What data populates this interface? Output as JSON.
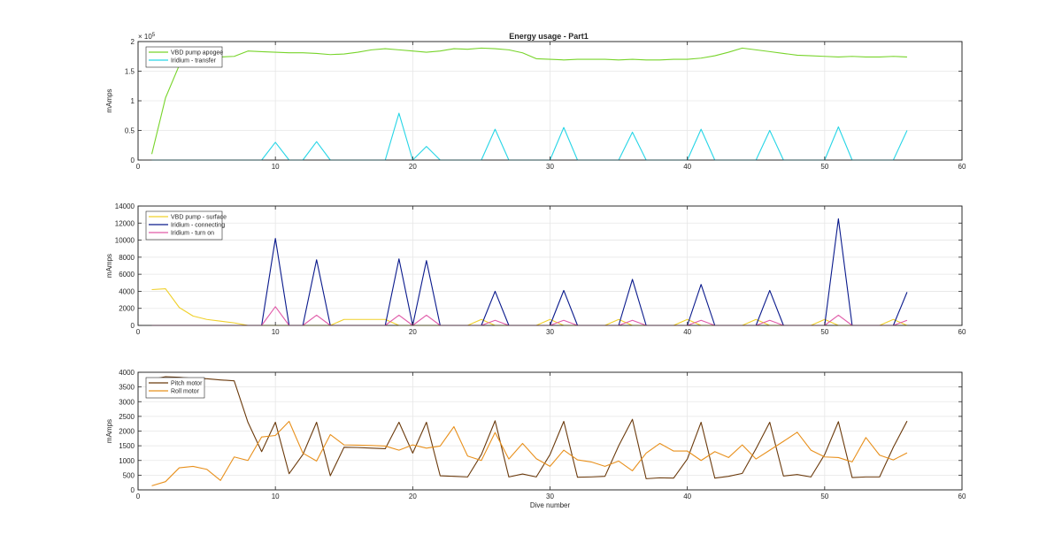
{
  "figure": {
    "title": "Energy usage - Part1"
  },
  "chart_data": [
    {
      "type": "line",
      "title": "Energy usage - Part1",
      "xlabel": "",
      "ylabel": "mAmps",
      "exponent_label": "× 10",
      "exponent_power": "5",
      "xlim": [
        0,
        60
      ],
      "ylim": [
        0,
        2
      ],
      "xticks": [
        0,
        10,
        20,
        30,
        40,
        50,
        60
      ],
      "yticks": [
        0,
        0.5,
        1,
        1.5,
        2
      ],
      "xtick_labels": [
        "0",
        "10",
        "20",
        "30",
        "40",
        "50",
        "60"
      ],
      "ytick_labels": [
        "0",
        "0.5",
        "1",
        "1.5",
        "2"
      ],
      "grid": true,
      "legend_position": "top-left",
      "series": [
        {
          "name": "VBD pump apogee",
          "color": "#77d42a",
          "x": [
            1,
            2,
            3,
            4,
            5,
            6,
            7,
            8,
            9,
            10,
            11,
            12,
            13,
            14,
            15,
            16,
            17,
            18,
            19,
            20,
            21,
            22,
            23,
            24,
            25,
            26,
            27,
            28,
            29,
            30,
            31,
            32,
            33,
            34,
            35,
            36,
            37,
            38,
            39,
            40,
            41,
            42,
            43,
            44,
            45,
            46,
            47,
            48,
            49,
            50,
            51,
            52,
            53,
            54,
            55,
            56
          ],
          "y": [
            0.1,
            1.05,
            1.6,
            1.72,
            1.73,
            1.74,
            1.75,
            1.84,
            1.83,
            1.82,
            1.81,
            1.81,
            1.8,
            1.78,
            1.79,
            1.82,
            1.86,
            1.88,
            1.86,
            1.84,
            1.82,
            1.84,
            1.88,
            1.87,
            1.89,
            1.88,
            1.86,
            1.81,
            1.71,
            1.7,
            1.69,
            1.7,
            1.7,
            1.7,
            1.69,
            1.7,
            1.69,
            1.69,
            1.7,
            1.7,
            1.72,
            1.76,
            1.82,
            1.89,
            1.86,
            1.83,
            1.8,
            1.77,
            1.76,
            1.75,
            1.74,
            1.75,
            1.74,
            1.74,
            1.75,
            1.74
          ]
        },
        {
          "name": "Iridium - transfer",
          "color": "#27d5e6",
          "x": [
            1,
            2,
            3,
            4,
            5,
            6,
            7,
            8,
            9,
            10,
            11,
            12,
            13,
            14,
            15,
            16,
            17,
            18,
            19,
            20,
            21,
            22,
            23,
            24,
            25,
            26,
            27,
            28,
            29,
            30,
            31,
            32,
            33,
            34,
            35,
            36,
            37,
            38,
            39,
            40,
            41,
            42,
            43,
            44,
            45,
            46,
            47,
            48,
            49,
            50,
            51,
            52,
            53,
            54,
            55,
            56
          ],
          "y": [
            0,
            0,
            0,
            0,
            0,
            0,
            0,
            0,
            0,
            0.3,
            0,
            0,
            0.31,
            0,
            0,
            0,
            0,
            0,
            0.79,
            0,
            0.23,
            0,
            0,
            0,
            0,
            0.52,
            0,
            0,
            0,
            0,
            0.55,
            0,
            0,
            0,
            0,
            0.47,
            0,
            0,
            0,
            0,
            0.52,
            0,
            0,
            0,
            0,
            0.5,
            0,
            0,
            0,
            0,
            0.56,
            0,
            0,
            0,
            0,
            0.5
          ]
        }
      ]
    },
    {
      "type": "line",
      "title": "",
      "xlabel": "",
      "ylabel": "mAmps",
      "xlim": [
        0,
        60
      ],
      "ylim": [
        0,
        14000
      ],
      "xticks": [
        0,
        10,
        20,
        30,
        40,
        50,
        60
      ],
      "yticks": [
        0,
        2000,
        4000,
        6000,
        8000,
        10000,
        12000,
        14000
      ],
      "xtick_labels": [
        "0",
        "10",
        "20",
        "30",
        "40",
        "50",
        "60"
      ],
      "ytick_labels": [
        "0",
        "2000",
        "4000",
        "6000",
        "8000",
        "10000",
        "12000",
        "14000"
      ],
      "grid": true,
      "legend_position": "top-left",
      "series": [
        {
          "name": "VBD pump - surface",
          "color": "#f0d02a",
          "x": [
            1,
            2,
            3,
            4,
            5,
            6,
            7,
            8,
            9,
            10,
            11,
            12,
            13,
            14,
            15,
            16,
            17,
            18,
            19,
            20,
            21,
            22,
            23,
            24,
            25,
            26,
            27,
            28,
            29,
            30,
            31,
            32,
            33,
            34,
            35,
            36,
            37,
            38,
            39,
            40,
            41,
            42,
            43,
            44,
            45,
            46,
            47,
            48,
            49,
            50,
            51,
            52,
            53,
            54,
            55,
            56
          ],
          "y": [
            4200,
            4300,
            2100,
            1100,
            700,
            500,
            300,
            0,
            0,
            0,
            0,
            0,
            0,
            0,
            700,
            700,
            700,
            700,
            0,
            0,
            0,
            0,
            0,
            0,
            700,
            0,
            0,
            0,
            0,
            700,
            0,
            0,
            0,
            0,
            700,
            0,
            0,
            0,
            0,
            700,
            0,
            0,
            0,
            0,
            700,
            0,
            0,
            0,
            0,
            700,
            0,
            0,
            0,
            0,
            700,
            0
          ]
        },
        {
          "name": "Iridium - connecting",
          "color": "#0a1a8c",
          "x": [
            1,
            2,
            3,
            4,
            5,
            6,
            7,
            8,
            9,
            10,
            11,
            12,
            13,
            14,
            15,
            16,
            17,
            18,
            19,
            20,
            21,
            22,
            23,
            24,
            25,
            26,
            27,
            28,
            29,
            30,
            31,
            32,
            33,
            34,
            35,
            36,
            37,
            38,
            39,
            40,
            41,
            42,
            43,
            44,
            45,
            46,
            47,
            48,
            49,
            50,
            51,
            52,
            53,
            54,
            55,
            56
          ],
          "y": [
            0,
            0,
            0,
            0,
            0,
            0,
            0,
            0,
            0,
            10200,
            0,
            0,
            7700,
            0,
            0,
            0,
            0,
            0,
            7800,
            0,
            7600,
            0,
            0,
            0,
            0,
            4000,
            0,
            0,
            0,
            0,
            4100,
            0,
            0,
            0,
            0,
            5400,
            0,
            0,
            0,
            0,
            4800,
            0,
            0,
            0,
            0,
            4100,
            0,
            0,
            0,
            0,
            12500,
            0,
            0,
            0,
            0,
            3900
          ]
        },
        {
          "name": "Iridium - turn on",
          "color": "#e05aa8",
          "x": [
            1,
            2,
            3,
            4,
            5,
            6,
            7,
            8,
            9,
            10,
            11,
            12,
            13,
            14,
            15,
            16,
            17,
            18,
            19,
            20,
            21,
            22,
            23,
            24,
            25,
            26,
            27,
            28,
            29,
            30,
            31,
            32,
            33,
            34,
            35,
            36,
            37,
            38,
            39,
            40,
            41,
            42,
            43,
            44,
            45,
            46,
            47,
            48,
            49,
            50,
            51,
            52,
            53,
            54,
            55,
            56
          ],
          "y": [
            0,
            0,
            0,
            0,
            0,
            0,
            0,
            0,
            0,
            2200,
            0,
            0,
            1200,
            0,
            0,
            0,
            0,
            0,
            1200,
            0,
            1200,
            0,
            0,
            0,
            0,
            600,
            0,
            0,
            0,
            0,
            600,
            0,
            0,
            0,
            0,
            600,
            0,
            0,
            0,
            0,
            600,
            0,
            0,
            0,
            0,
            600,
            0,
            0,
            0,
            0,
            1200,
            0,
            0,
            0,
            0,
            600
          ]
        }
      ]
    },
    {
      "type": "line",
      "title": "",
      "xlabel": "Dive number",
      "ylabel": "mAmps",
      "xlim": [
        0,
        60
      ],
      "ylim": [
        0,
        4000
      ],
      "xticks": [
        0,
        10,
        20,
        30,
        40,
        50,
        60
      ],
      "yticks": [
        0,
        500,
        1000,
        1500,
        2000,
        2500,
        3000,
        3500,
        4000
      ],
      "xtick_labels": [
        "0",
        "10",
        "20",
        "30",
        "40",
        "50",
        "60"
      ],
      "ytick_labels": [
        "0",
        "500",
        "1000",
        "1500",
        "2000",
        "2500",
        "3000",
        "3500",
        "4000"
      ],
      "grid": true,
      "legend_position": "top-left",
      "series": [
        {
          "name": "Pitch motor",
          "color": "#6b3a0c",
          "x": [
            1,
            2,
            3,
            4,
            5,
            6,
            7,
            8,
            9,
            10,
            11,
            12,
            13,
            14,
            15,
            16,
            17,
            18,
            19,
            20,
            21,
            22,
            23,
            24,
            25,
            26,
            27,
            28,
            29,
            30,
            31,
            32,
            33,
            34,
            35,
            36,
            37,
            38,
            39,
            40,
            41,
            42,
            43,
            44,
            45,
            46,
            47,
            48,
            49,
            50,
            51,
            52,
            53,
            54,
            55,
            56
          ],
          "y": [
            3760,
            3850,
            3830,
            3790,
            3780,
            3740,
            3710,
            2300,
            1300,
            2300,
            550,
            1200,
            2300,
            480,
            1450,
            1440,
            1420,
            1400,
            2300,
            1250,
            2300,
            480,
            460,
            440,
            1200,
            2350,
            440,
            540,
            440,
            1200,
            2330,
            430,
            440,
            460,
            1500,
            2400,
            380,
            410,
            400,
            1050,
            2300,
            400,
            460,
            560,
            1400,
            2300,
            470,
            520,
            440,
            1200,
            2320,
            420,
            440,
            440,
            1450,
            2340
          ]
        },
        {
          "name": "Roll motor",
          "color": "#e8901c",
          "x": [
            1,
            2,
            3,
            4,
            5,
            6,
            7,
            8,
            9,
            10,
            11,
            12,
            13,
            14,
            15,
            16,
            17,
            18,
            19,
            20,
            21,
            22,
            23,
            24,
            25,
            26,
            27,
            28,
            29,
            30,
            31,
            32,
            33,
            34,
            35,
            36,
            37,
            38,
            39,
            40,
            41,
            42,
            43,
            44,
            45,
            46,
            47,
            48,
            49,
            50,
            51,
            52,
            53,
            54,
            55,
            56
          ],
          "y": [
            140,
            280,
            750,
            800,
            700,
            320,
            1120,
            1000,
            1800,
            1850,
            2330,
            1250,
            980,
            1880,
            1530,
            1520,
            1510,
            1490,
            1350,
            1530,
            1420,
            1490,
            2150,
            1150,
            1000,
            1950,
            1050,
            1580,
            1060,
            800,
            1350,
            1020,
            950,
            800,
            980,
            650,
            1250,
            1580,
            1320,
            1320,
            1000,
            1300,
            1100,
            1530,
            1050,
            1350,
            1650,
            1960,
            1350,
            1120,
            1100,
            950,
            1780,
            1180,
            1020,
            1260
          ]
        }
      ]
    }
  ]
}
